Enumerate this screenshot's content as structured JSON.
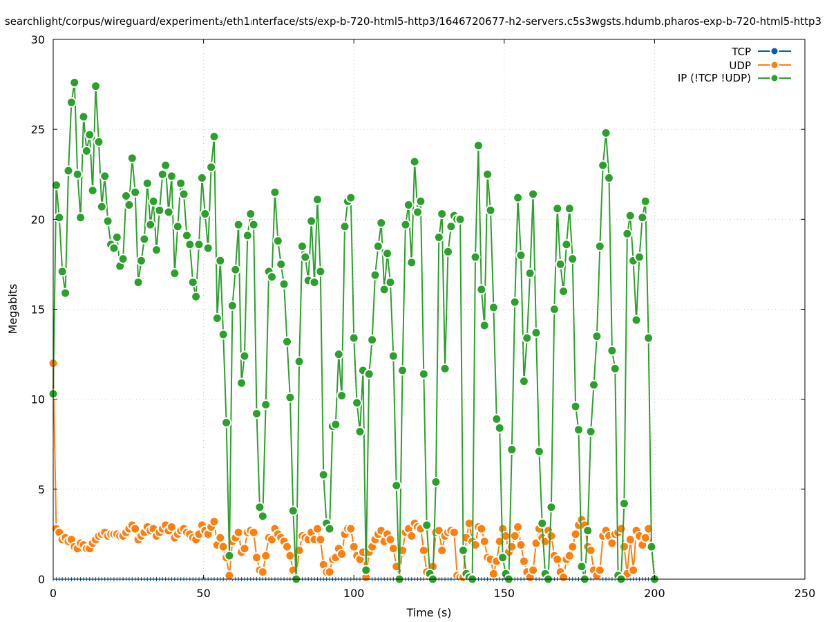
{
  "chart_data": {
    "type": "line",
    "title": "searchlight/corpus/wireguard/experiment₃/eth1ᵢnterface/sts/exp-b-720-html5-http3/1646720677-h2-servers.c5s3wgsts.hdumb.pharos-exp-b-720-html5-http3",
    "xlabel": "Time (s)",
    "ylabel": "Megabits",
    "xlim": [
      0,
      250
    ],
    "ylim": [
      0,
      30
    ],
    "xticks": [
      0,
      50,
      100,
      150,
      200,
      250
    ],
    "yticks": [
      0,
      5,
      10,
      15,
      20,
      25,
      30
    ],
    "grid": true,
    "legend_position": "top-right",
    "x_start": 0,
    "x_end": 200,
    "series": [
      {
        "name": "TCP",
        "color": "#0060ad",
        "values": "zeros"
      },
      {
        "name": "UDP",
        "color": "#ff7f0e",
        "values": [
          12.0,
          2.8,
          2.6,
          2.2,
          2.3,
          2.1,
          2.2,
          1.8,
          1.7,
          2.0,
          1.9,
          1.7,
          1.7,
          2.0,
          2.2,
          2.4,
          2.5,
          2.6,
          2.4,
          2.5,
          2.5,
          2.5,
          2.4,
          2.4,
          2.6,
          2.8,
          3.0,
          2.8,
          2.2,
          2.4,
          2.6,
          2.9,
          2.7,
          2.8,
          2.4,
          2.6,
          2.8,
          3.0,
          2.7,
          2.9,
          2.3,
          2.5,
          2.7,
          2.8,
          2.6,
          2.5,
          2.3,
          2.2,
          2.5,
          3.0,
          2.7,
          2.5,
          2.9,
          3.2,
          1.9,
          2.3,
          1.8,
          1.2,
          0.2,
          2.1,
          2.3,
          2.6,
          1.5,
          1.7,
          2.6,
          2.7,
          2.6,
          1.2,
          0.5,
          0.4,
          1.3,
          2.3,
          2.2,
          2.8,
          2.5,
          2.3,
          2.1,
          1.8,
          1.3,
          0.5,
          0.1,
          1.6,
          2.4,
          2.3,
          2.2,
          2.6,
          2.2,
          2.8,
          2.2,
          0.8,
          0.4,
          0.4,
          1.1,
          1.2,
          1.7,
          1.4,
          2.5,
          2.8,
          2.8,
          1.8,
          1.3,
          1.1,
          1.5,
          0.1,
          1.5,
          1.8,
          2.2,
          2.5,
          2.7,
          2.1,
          2.5,
          2.2,
          1.7,
          0.7,
          0.1,
          1.6,
          2.6,
          2.8,
          2.4,
          3.1,
          2.9,
          2.8,
          1.6,
          0.4,
          0.1,
          0.7,
          2.6,
          2.7,
          1.6,
          2.4,
          2.6,
          2.7,
          2.6,
          0.2,
          0.1,
          0.1,
          2.3,
          3.1,
          2.1,
          1.9,
          2.9,
          2.8,
          2.1,
          1.2,
          1.1,
          0.3,
          1.0,
          2.1,
          2.8,
          2.4,
          1.5,
          1.8,
          2.4,
          2.9,
          1.9,
          1.0,
          0.4,
          0.1,
          0.5,
          2.0,
          2.8,
          2.3,
          2.1,
          2.7,
          2.4,
          1.3,
          1.1,
          0.4,
          0.1,
          1.1,
          1.3,
          1.8,
          2.5,
          3.0,
          3.3,
          3.0,
          1.8,
          1.6,
          0.5,
          0.2,
          0.5,
          2.4,
          2.7,
          2.4,
          2.0,
          2.5,
          2.6,
          2.8,
          1.8,
          0.3,
          2.2,
          0.5,
          2.7,
          2.4,
          1.9,
          2.3,
          2.8,
          1.8,
          0.1
        ]
      },
      {
        "name": "IP (!TCP  !UDP)",
        "color": "#2ca02c",
        "values": [
          10.3,
          21.9,
          20.1,
          17.1,
          15.9,
          22.7,
          26.5,
          27.6,
          22.5,
          20.1,
          25.7,
          23.8,
          24.7,
          21.6,
          27.4,
          24.3,
          20.7,
          22.4,
          19.9,
          18.6,
          18.4,
          19.0,
          17.4,
          17.8,
          21.3,
          20.8,
          23.4,
          21.5,
          16.5,
          17.7,
          18.9,
          22.0,
          19.7,
          21.0,
          18.3,
          20.5,
          22.5,
          23.0,
          20.4,
          22.4,
          17.0,
          19.6,
          22.0,
          21.4,
          19.1,
          18.6,
          16.5,
          15.7,
          18.6,
          22.3,
          20.3,
          18.4,
          22.9,
          24.6,
          14.5,
          17.7,
          13.6,
          8.7,
          1.3,
          15.2,
          17.2,
          19.7,
          10.9,
          12.4,
          19.1,
          20.3,
          19.7,
          9.2,
          4.0,
          3.5,
          9.7,
          17.1,
          16.8,
          21.5,
          18.8,
          17.5,
          16.4,
          13.2,
          10.1,
          3.8,
          0,
          12.1,
          18.5,
          17.9,
          16.6,
          19.9,
          16.5,
          21.1,
          17.1,
          5.8,
          3.1,
          2.8,
          8.5,
          8.6,
          12.5,
          10.2,
          19.6,
          21.0,
          21.2,
          13.4,
          9.8,
          8.2,
          11.6,
          0.5,
          11.4,
          13.3,
          16.9,
          18.5,
          19.8,
          16.1,
          18.1,
          16.5,
          12.4,
          5.2,
          0,
          11.6,
          19.7,
          20.8,
          17.6,
          23.2,
          20.4,
          21.0,
          11.4,
          3.0,
          0.3,
          0,
          5.4,
          19.0,
          20.3,
          11.7,
          18.2,
          19.6,
          20.2,
          20.0,
          20.0,
          1.6,
          0.3,
          0.1,
          0,
          17.9,
          24.1,
          16.1,
          14.1,
          22.5,
          20.5,
          15.1,
          8.9,
          8.4,
          1.2,
          0.3,
          0,
          7.2,
          15.4,
          21.2,
          18.0,
          11.0,
          13.4,
          17.0,
          21.4,
          13.7,
          7.1,
          3.1,
          0.3,
          0,
          4.0,
          15.0,
          20.6,
          17.5,
          16.0,
          18.6,
          20.6,
          17.8,
          9.6,
          8.3,
          0.7,
          0,
          2.7,
          8.2,
          10.8,
          13.5,
          18.5,
          23.0,
          24.8,
          22.3,
          12.7,
          11.7,
          0.2,
          0,
          4.2,
          19.2,
          20.2,
          17.7,
          14.4,
          17.9,
          20.1,
          21.0,
          13.4,
          1.8,
          0
        ]
      }
    ]
  }
}
